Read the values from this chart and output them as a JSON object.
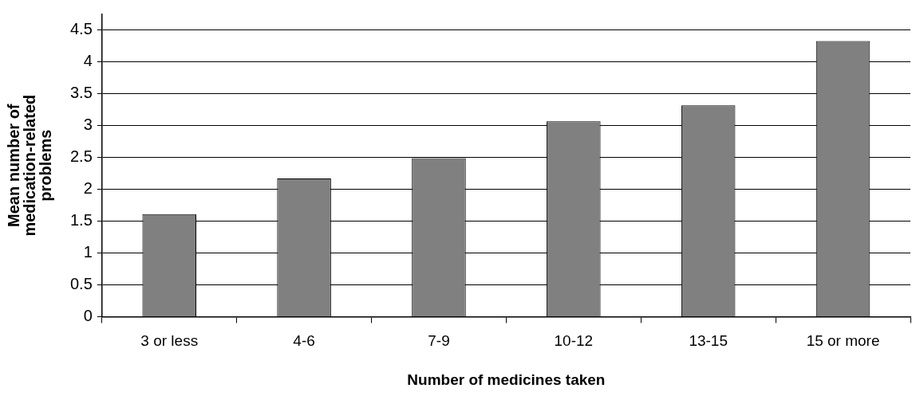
{
  "chart_data": {
    "type": "bar",
    "xlabel": "Number of medicines taken",
    "ylabel": "Mean number of medication-related problems",
    "categories": [
      "3 or less",
      "4-6",
      "7-9",
      "10-12",
      "13-15",
      "15 or more"
    ],
    "values": [
      1.61,
      2.17,
      2.49,
      3.07,
      3.32,
      4.33
    ],
    "color": "#808080",
    "ylim": [
      0,
      4.75
    ],
    "yticks": [
      0,
      0.5,
      1,
      1.5,
      2,
      2.5,
      3,
      3.5,
      4,
      4.5
    ],
    "grid": "y",
    "legend": false
  }
}
